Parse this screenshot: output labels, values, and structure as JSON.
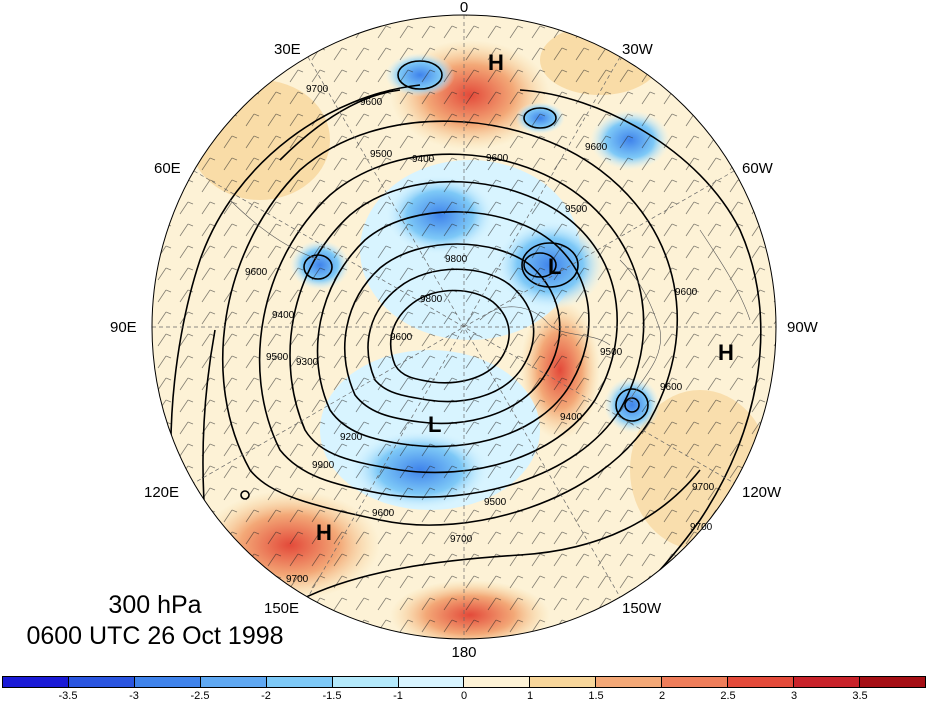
{
  "map": {
    "projection": "north polar stereographic",
    "longitude_labels": [
      "0",
      "30W",
      "60W",
      "90W",
      "120W",
      "150W",
      "180",
      "150E",
      "120E",
      "90E",
      "60E",
      "30E"
    ],
    "pressure_centers": [
      {
        "label": "H",
        "position": "upper center near 15W"
      },
      {
        "label": "L",
        "position": "near 50W"
      },
      {
        "label": "L",
        "position": "near 150E"
      },
      {
        "label": "H",
        "position": "near 95W"
      },
      {
        "label": "H",
        "position": "near 130E"
      }
    ],
    "contour_labels": [
      "9700",
      "9600",
      "9500",
      "9400",
      "9300",
      "9200",
      "9800",
      "9900"
    ],
    "colors": {
      "negative_dark": "#1a1ad6",
      "negative_light": "#d8f4ff",
      "positive_light": "#fdf2d6",
      "positive_dark": "#a50f15"
    }
  },
  "caption": {
    "level": "300 hPa",
    "time": "0600 UTC 26 Oct 1998"
  },
  "colorbar": {
    "colors": [
      "#1a1ad6",
      "#2a55e0",
      "#3f83eb",
      "#5fa8f2",
      "#7ec9f7",
      "#b4e9fb",
      "#d8f4ff",
      "#fdf2d6",
      "#f7d69b",
      "#f3a877",
      "#ee7d5a",
      "#e34a3a",
      "#c8222a",
      "#a50f15"
    ],
    "tick_labels": [
      "-3.5",
      "-3",
      "-2.5",
      "-2",
      "-1.5",
      "-1",
      "0",
      "1",
      "1.5",
      "2",
      "2.5",
      "3",
      "3.5"
    ]
  }
}
